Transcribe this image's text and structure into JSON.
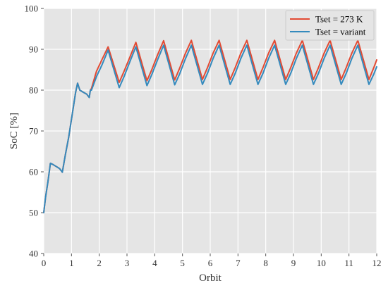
{
  "chart_data": {
    "type": "line",
    "xlabel": "Orbit",
    "ylabel": "SoC [%]",
    "xlim": [
      0,
      12
    ],
    "ylim": [
      40,
      100
    ],
    "xticks": [
      0,
      1,
      2,
      3,
      4,
      5,
      6,
      7,
      8,
      9,
      10,
      11,
      12
    ],
    "yticks": [
      40,
      50,
      60,
      70,
      80,
      90,
      100
    ],
    "grid": true,
    "legend_position": "top-right",
    "series": [
      {
        "name": "Tset = 273 K",
        "color": "#e24a33",
        "x": [
          0,
          0.07,
          0.15,
          0.24,
          0.33,
          0.45,
          0.57,
          0.67,
          0.78,
          0.9,
          1.03,
          1.15,
          1.22,
          1.3,
          1.42,
          1.55,
          1.64,
          1.68,
          1.72,
          1.9,
          2.1,
          2.32,
          2.72,
          2.9,
          3.1,
          3.32,
          3.72,
          3.9,
          4.1,
          4.32,
          4.72,
          4.9,
          5.1,
          5.32,
          5.72,
          5.9,
          6.1,
          6.32,
          6.72,
          6.9,
          7.1,
          7.32,
          7.72,
          7.9,
          8.1,
          8.32,
          8.72,
          8.9,
          9.1,
          9.32,
          9.72,
          9.9,
          10.1,
          10.32,
          10.72,
          10.9,
          11.1,
          11.32,
          11.72,
          11.9,
          12
        ],
        "y": [
          50.0,
          54.0,
          57.5,
          62.1,
          61.8,
          61.3,
          60.8,
          59.9,
          64.2,
          68.5,
          74.2,
          79.5,
          81.7,
          80.0,
          79.5,
          79.0,
          78.2,
          80.0,
          80.4,
          84.6,
          87.5,
          90.6,
          81.9,
          84.7,
          88.0,
          91.7,
          82.3,
          85.1,
          88.6,
          92.1,
          82.5,
          85.4,
          88.9,
          92.2,
          82.6,
          85.5,
          89.0,
          92.2,
          82.6,
          85.5,
          89.0,
          92.2,
          82.6,
          85.5,
          89.0,
          92.2,
          82.6,
          85.5,
          89.0,
          92.2,
          82.6,
          85.5,
          89.0,
          92.2,
          82.6,
          85.5,
          89.0,
          92.2,
          82.6,
          85.6,
          87.4
        ]
      },
      {
        "name": "Tset = variant",
        "color": "#348abd",
        "x": [
          0,
          0.07,
          0.15,
          0.24,
          0.33,
          0.45,
          0.57,
          0.67,
          0.78,
          0.9,
          1.03,
          1.15,
          1.22,
          1.3,
          1.42,
          1.55,
          1.64,
          1.68,
          1.72,
          1.9,
          2.1,
          2.32,
          2.72,
          2.9,
          3.1,
          3.32,
          3.72,
          3.9,
          4.1,
          4.32,
          4.72,
          4.9,
          5.1,
          5.32,
          5.72,
          5.9,
          6.1,
          6.32,
          6.72,
          6.9,
          7.1,
          7.32,
          7.72,
          7.9,
          8.1,
          8.32,
          8.72,
          8.9,
          9.1,
          9.32,
          9.72,
          9.9,
          10.1,
          10.32,
          10.72,
          10.9,
          11.1,
          11.32,
          11.72,
          11.9,
          12
        ],
        "y": [
          50.0,
          54.0,
          57.5,
          62.1,
          61.8,
          61.3,
          60.8,
          59.9,
          64.2,
          68.5,
          74.2,
          79.5,
          81.7,
          80.0,
          79.5,
          79.0,
          78.2,
          80.0,
          80.0,
          83.3,
          86.2,
          89.8,
          80.6,
          83.4,
          86.9,
          90.6,
          81.1,
          83.9,
          87.4,
          91.0,
          81.3,
          84.0,
          87.6,
          91.0,
          81.4,
          84.1,
          87.7,
          91.0,
          81.4,
          84.1,
          87.7,
          91.0,
          81.4,
          84.1,
          87.7,
          91.0,
          81.4,
          84.1,
          87.7,
          91.0,
          81.4,
          84.1,
          87.7,
          91.0,
          81.4,
          84.1,
          87.7,
          91.0,
          81.4,
          84.0,
          85.7
        ]
      }
    ]
  }
}
